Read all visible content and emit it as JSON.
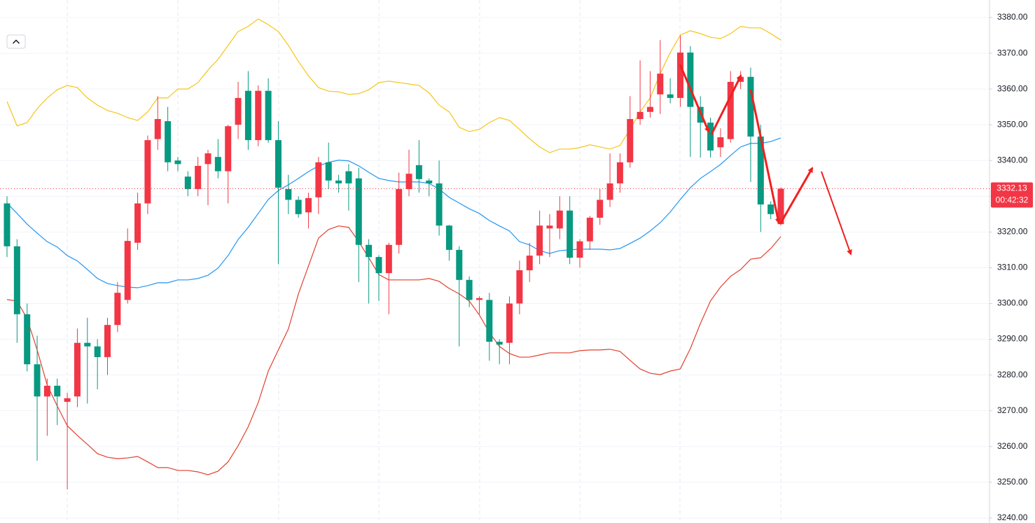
{
  "chart_data": {
    "type": "candlestick",
    "ylim": [
      3238.6,
      3384.9
    ],
    "yticks": [
      {
        "value": 3240,
        "label": "3240.00"
      },
      {
        "value": 3250,
        "label": "3250.00"
      },
      {
        "value": 3260,
        "label": "3260.00"
      },
      {
        "value": 3270,
        "label": "3270.00"
      },
      {
        "value": 3280,
        "label": "3280.00"
      },
      {
        "value": 3290,
        "label": "3290.00"
      },
      {
        "value": 3300,
        "label": "3300.00"
      },
      {
        "value": 3310,
        "label": "3310.00"
      },
      {
        "value": 3320,
        "label": "3320.00"
      },
      {
        "value": 3330,
        "label": "3330.00"
      },
      {
        "value": 3340,
        "label": "3340.00"
      },
      {
        "value": 3350,
        "label": "3350.00"
      },
      {
        "value": 3360,
        "label": "3360.00"
      },
      {
        "value": 3370,
        "label": "3370.00"
      },
      {
        "value": 3380,
        "label": "3380.00"
      }
    ],
    "grid": true,
    "up_color": "#f23645",
    "down_color": "#089981",
    "open": [
      3328,
      3316,
      3297,
      3283,
      3274,
      3277,
      3272.5,
      3274,
      3289,
      3288,
      3285,
      3294,
      3301,
      3317,
      3328,
      3346,
      3351,
      3340,
      3335.5,
      3332,
      3339,
      3341,
      3337,
      3350,
      3359.5,
      3345.7,
      3359.5,
      3345.7,
      3332,
      3329,
      3325.5,
      3329.7,
      3339.5,
      3334.4,
      3337,
      3335,
      3316.4,
      3313,
      3308.5,
      3316.4,
      3332,
      3338.7,
      3334.4,
      3333.6,
      3321.8,
      3315,
      3306.6,
      3301,
      3301,
      3289.3,
      3289,
      3300,
      3309.3,
      3313.4,
      3321,
      3321,
      3326,
      3312.8,
      3317.4,
      3324,
      3329,
      3333.6,
      3339.5,
      3351.6,
      3353.6,
      3358.5,
      3358.5,
      3357.5,
      3370.2,
      3355,
      3350.6,
      3343.7,
      3346,
      3362,
      3363.4,
      3346.7,
      3327.7,
      3322.2
    ],
    "high": [
      3330,
      3318,
      3300,
      3291,
      3279,
      3279,
      3275,
      3293,
      3296,
      3290,
      3296,
      3306,
      3321,
      3331,
      3347,
      3358,
      3355,
      3341,
      3337,
      3341,
      3343,
      3346,
      3350,
      3362,
      3365,
      3361,
      3363,
      3351,
      3336,
      3330,
      3331,
      3341,
      3345,
      3336,
      3339,
      3338,
      3318,
      3313.5,
      3317,
      3336.6,
      3343,
      3345.7,
      3335,
      3340,
      3322,
      3316,
      3307.6,
      3302,
      3303,
      3290,
      3302,
      3312,
      3317,
      3326,
      3325,
      3330,
      3330,
      3318,
      3324.5,
      3332,
      3342,
      3342,
      3358,
      3368,
      3365,
      3373.7,
      3363,
      3375,
      3372,
      3358,
      3352,
      3349,
      3365,
      3365,
      3366,
      3350,
      3328.6,
      3332.5
    ],
    "low": [
      3313,
      3289,
      3281,
      3256,
      3263,
      3266,
      3248,
      3271,
      3272,
      3276,
      3280,
      3292,
      3300,
      3315,
      3325,
      3343,
      3337,
      3337,
      3330,
      3330,
      3327.5,
      3335,
      3328,
      3346,
      3343,
      3344,
      3345,
      3311,
      3325,
      3324,
      3321,
      3325,
      3332,
      3331,
      3326,
      3306,
      3300,
      3300.7,
      3297,
      3314,
      3330,
      3331,
      3330,
      3319,
      3312,
      3288,
      3299,
      3297,
      3284,
      3283,
      3283,
      3297,
      3306,
      3311,
      3313,
      3318,
      3311,
      3310,
      3315,
      3322,
      3327,
      3331,
      3338,
      3350,
      3352,
      3353,
      3356,
      3355,
      3341,
      3340.8,
      3340.8,
      3341,
      3345,
      3360,
      3334,
      3320,
      3323.6,
      3321.8
    ],
    "close": [
      3316,
      3297,
      3283,
      3274,
      3277,
      3274,
      3273.5,
      3289,
      3288,
      3285,
      3294,
      3303,
      3317.5,
      3328,
      3345.7,
      3351.6,
      3339.5,
      3339,
      3332,
      3338.5,
      3342,
      3337,
      3349.6,
      3357.5,
      3345.7,
      3359.5,
      3345.7,
      3332.4,
      3329,
      3325,
      3329.5,
      3339.5,
      3334.4,
      3333.6,
      3333.6,
      3316.4,
      3313,
      3308.5,
      3316.4,
      3332,
      3336.3,
      3334.8,
      3333.6,
      3321.8,
      3315,
      3306.6,
      3301,
      3301.5,
      3289.3,
      3288.5,
      3300,
      3309.3,
      3313.4,
      3321.8,
      3321.8,
      3326,
      3312.8,
      3317.4,
      3324,
      3329,
      3333.6,
      3339.5,
      3351.6,
      3353.6,
      3355,
      3364.3,
      3357.5,
      3370.2,
      3355,
      3350.6,
      3342.8,
      3346.5,
      3362,
      3363.4,
      3346.7,
      3327.7,
      3325,
      3332.13
    ],
    "bands": [
      {
        "color": "#f5c518",
        "values": [
          3356.5,
          3349.7,
          3350.6,
          3354.5,
          3357.5,
          3359.8,
          3361.0,
          3360.4,
          3357.5,
          3355.5,
          3354.0,
          3353.2,
          3352.0,
          3351.2,
          3353.6,
          3357.5,
          3357.5,
          3360.0,
          3360.0,
          3361.8,
          3365.3,
          3368.3,
          3372.2,
          3376.1,
          3377.5,
          3379.6,
          3378.0,
          3376.1,
          3372.2,
          3367.7,
          3363.7,
          3360.4,
          3359.4,
          3359.2,
          3358.5,
          3358.7,
          3359.8,
          3361.8,
          3362.2,
          3361.8,
          3361.4,
          3361.0,
          3358.9,
          3355.5,
          3353.6,
          3349.3,
          3348.1,
          3348.7,
          3350.6,
          3352.0,
          3351.2,
          3348.7,
          3346.1,
          3343.8,
          3342.2,
          3343.2,
          3343.2,
          3343.6,
          3344.4,
          3343.8,
          3343.2,
          3344.2,
          3348.7,
          3353.6,
          3357.5,
          3364.3,
          3370.2,
          3375.1,
          3376.3,
          3375.5,
          3374.5,
          3374.1,
          3375.5,
          3377.5,
          3377.1,
          3377.1,
          3375.5,
          3373.7
        ]
      },
      {
        "color": "#2196f3",
        "values": [
          3328.1,
          3325.2,
          3322.2,
          3319.7,
          3317.3,
          3315.8,
          3313.4,
          3311.9,
          3309.5,
          3307.0,
          3305.6,
          3305.0,
          3304.6,
          3304.4,
          3305.0,
          3305.8,
          3305.8,
          3306.6,
          3306.6,
          3307.0,
          3307.9,
          3309.9,
          3313.4,
          3317.9,
          3321.3,
          3325.2,
          3329.1,
          3331.6,
          3333.2,
          3335.0,
          3336.9,
          3338.5,
          3339.5,
          3340.1,
          3339.9,
          3338.5,
          3336.7,
          3335.0,
          3334.4,
          3334.0,
          3334.0,
          3334.0,
          3333.6,
          3332.0,
          3329.7,
          3328.1,
          3326.5,
          3325.2,
          3323.2,
          3321.7,
          3320.3,
          3317.3,
          3316.4,
          3314.8,
          3314.0,
          3314.8,
          3315.0,
          3315.2,
          3315.2,
          3315.2,
          3315.0,
          3315.4,
          3316.8,
          3318.3,
          3320.3,
          3322.6,
          3325.6,
          3329.1,
          3332.4,
          3335.0,
          3336.9,
          3338.9,
          3341.4,
          3343.8,
          3344.8,
          3344.8,
          3345.3,
          3346.3
        ]
      },
      {
        "color": "#e0412f",
        "values": [
          3301.1,
          3300.7,
          3295.8,
          3287.0,
          3277.2,
          3271.3,
          3265.8,
          3263.1,
          3260.6,
          3258.0,
          3257.0,
          3256.6,
          3256.8,
          3257.2,
          3255.7,
          3254.1,
          3254.1,
          3253.3,
          3253.3,
          3252.9,
          3252.1,
          3253.1,
          3255.7,
          3260.2,
          3265.5,
          3272.3,
          3281.1,
          3287.0,
          3292.9,
          3302.7,
          3310.5,
          3318.3,
          3320.7,
          3321.7,
          3321.3,
          3317.3,
          3312.8,
          3308.1,
          3306.6,
          3306.6,
          3306.6,
          3306.6,
          3307.0,
          3306.2,
          3304.2,
          3302.7,
          3300.7,
          3296.8,
          3291.9,
          3288.0,
          3286.0,
          3285.0,
          3285.0,
          3285.6,
          3286.2,
          3286.2,
          3286.2,
          3286.8,
          3287.0,
          3287.0,
          3287.2,
          3286.6,
          3284.1,
          3281.7,
          3280.5,
          3280.1,
          3281.1,
          3281.7,
          3287.4,
          3294.4,
          3300.7,
          3304.6,
          3307.6,
          3309.5,
          3312.4,
          3312.8,
          3315.4,
          3318.7
        ]
      }
    ],
    "last_price": 3332.13,
    "countdown": "00:42:32"
  }
}
